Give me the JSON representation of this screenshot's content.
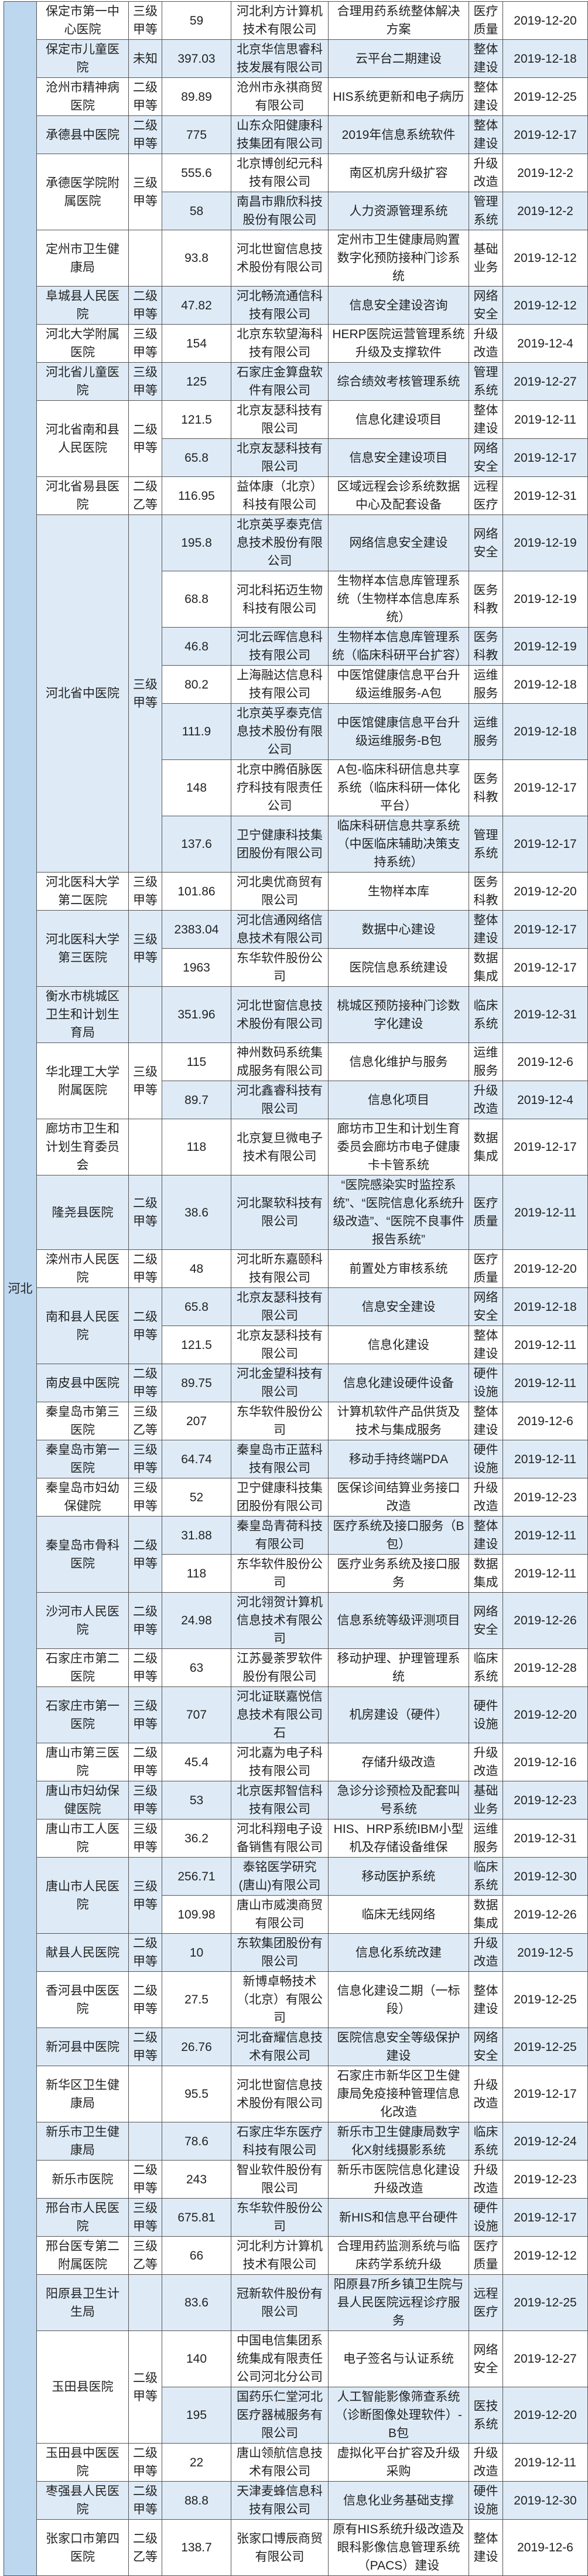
{
  "province": "河北",
  "colors": {
    "province_bg": "#bdd7ee",
    "row_shade": "#deebf7",
    "row_plain": "#ffffff",
    "border": "#555555"
  },
  "hospitals": [
    {
      "name": "保定市第一中心医院",
      "grade": "三级甲等",
      "items": [
        {
          "amount": "59",
          "vendor": "河北利方计算机技术有限公司",
          "project": "合理用药系统整体解决方案",
          "category": "医疗质量",
          "date": "2019-12-20"
        }
      ]
    },
    {
      "name": "保定市儿童医院",
      "grade": "未知",
      "items": [
        {
          "amount": "397.03",
          "vendor": "北京华信思睿科技发展有限公司",
          "project": "云平台二期建设",
          "category": "整体建设",
          "date": "2019-12-18"
        }
      ]
    },
    {
      "name": "沧州市精神病医院",
      "grade": "二级甲等",
      "items": [
        {
          "amount": "89.89",
          "vendor": "沧州市永祺商贸有限公司",
          "project": "HIS系统更新和电子病历",
          "category": "整体建设",
          "date": "2019-12-25"
        }
      ]
    },
    {
      "name": "承德县中医院",
      "grade": "二级甲等",
      "items": [
        {
          "amount": "775",
          "vendor": "山东众阳健康科技集团有限公司",
          "project": "2019年信息系统软件",
          "category": "整体建设",
          "date": "2019-12-17"
        }
      ]
    },
    {
      "name": "承德医学院附属医院",
      "grade": "三级甲等",
      "items": [
        {
          "amount": "555.6",
          "vendor": "北京博创纪元科技有限公司",
          "project": "南区机房升级扩容",
          "category": "升级改造",
          "date": "2019-12-2"
        },
        {
          "amount": "58",
          "vendor": "南昌市鼎欣科技股份有限公司",
          "project": "人力资源管理系统",
          "category": "管理系统",
          "date": "2019-12-2"
        }
      ]
    },
    {
      "name": "定州市卫生健康局",
      "grade": "",
      "items": [
        {
          "amount": "93.8",
          "vendor": "河北世窗信息技术股份有限公司",
          "project": "定州市卫生健康局购置数字化预防接种门诊系统",
          "category": "基础业务",
          "date": "2019-12-12"
        }
      ]
    },
    {
      "name": "阜城县人民医院",
      "grade": "二级甲等",
      "items": [
        {
          "amount": "47.82",
          "vendor": "河北畅流通信科技有限公司",
          "project": "信息安全建设咨询",
          "category": "网络安全",
          "date": "2019-12-12"
        }
      ]
    },
    {
      "name": "河北大学附属医院",
      "grade": "三级甲等",
      "items": [
        {
          "amount": "154",
          "vendor": "北京东软望海科技有限公司",
          "project": "HERP医院运营管理系统升级及支撑软件",
          "category": "升级改造",
          "date": "2019-12-4"
        }
      ]
    },
    {
      "name": "河北省儿童医院",
      "grade": "三级甲等",
      "items": [
        {
          "amount": "125",
          "vendor": "石家庄金算盘软件有限公司",
          "project": "综合绩效考核管理系统",
          "category": "管理系统",
          "date": "2019-12-27"
        }
      ]
    },
    {
      "name": "河北省南和县人民医院",
      "grade": "二级甲等",
      "items": [
        {
          "amount": "121.5",
          "vendor": "北京友瑟科技有限公司",
          "project": "信息化建设项目",
          "category": "整体建设",
          "date": "2019-12-11"
        },
        {
          "amount": "65.8",
          "vendor": "北京友瑟科技有限公司",
          "project": "信息安全建设项目",
          "category": "网络安全",
          "date": "2019-12-17"
        }
      ]
    },
    {
      "name": "河北省易县医院",
      "grade": "二级乙等",
      "items": [
        {
          "amount": "116.95",
          "vendor": "益体康（北京）科技有限公司",
          "project": "区域远程会诊系统数据中心及配套设备",
          "category": "远程医疗",
          "date": "2019-12-31"
        }
      ]
    },
    {
      "name": "河北省中医院",
      "grade": "三级甲等",
      "items": [
        {
          "amount": "195.8",
          "vendor": "北京英孚泰克信息技术股份有限公司",
          "project": "网络信息安全建设",
          "category": "网络安全",
          "date": "2019-12-19"
        },
        {
          "amount": "68.8",
          "vendor": "河北科拓迈生物科技有限公司",
          "project": "生物样本信息库管理系统（生物样本信息库系统）",
          "category": "医务科教",
          "date": "2019-12-19"
        },
        {
          "amount": "46.8",
          "vendor": "河北云晖信息科技有限公司",
          "project": "生物样本信息库管理系统（临床科研平台扩容）",
          "category": "医务科教",
          "date": "2019-12-19"
        },
        {
          "amount": "80.2",
          "vendor": "上海融达信息科技有限公司",
          "project": "中医馆健康信息平台升级运维服务-A包",
          "category": "运维服务",
          "date": "2019-12-18"
        },
        {
          "amount": "111.9",
          "vendor": "北京英孚泰克信息技术股份有限公司",
          "project": "中医馆健康信息平台升级运维服务-B包",
          "category": "运维服务",
          "date": "2019-12-18"
        },
        {
          "amount": "148",
          "vendor": "北京中腾佰脉医疗科技有限责任公司",
          "project": "A包-临床科研信息共享系统（临床科研一体化平台）",
          "category": "医务科教",
          "date": "2019-12-17"
        },
        {
          "amount": "137.6",
          "vendor": "卫宁健康科技集团股份有限公司",
          "project": "临床科研信息共享系统（中医临床辅助决策支持系统）",
          "category": "管理系统",
          "date": "2019-12-17"
        }
      ]
    },
    {
      "name": "河北医科大学第二医院",
      "grade": "三级甲等",
      "items": [
        {
          "amount": "101.86",
          "vendor": "河北奥优商贸有限公司",
          "project": "生物样本库",
          "category": "医务科教",
          "date": "2019-12-20"
        }
      ]
    },
    {
      "name": "河北医科大学第三医院",
      "grade": "三级甲等",
      "items": [
        {
          "amount": "2383.04",
          "vendor": "河北信通网络信息技术有限公司",
          "project": "数据中心建设",
          "category": "整体建设",
          "date": "2019-12-17"
        },
        {
          "amount": "1963",
          "vendor": "东华软件股份公司",
          "project": "医院信息系统建设",
          "category": "数据集成",
          "date": "2019-12-17"
        }
      ]
    },
    {
      "name": "衡水市桃城区卫生和计划生育局",
      "grade": "",
      "items": [
        {
          "amount": "351.96",
          "vendor": "河北世窗信息技术股份有限公司",
          "project": "桃城区预防接种门诊数字化建设",
          "category": "临床系统",
          "date": "2019-12-31"
        }
      ]
    },
    {
      "name": "华北理工大学附属医院",
      "grade": "三级甲等",
      "items": [
        {
          "amount": "115",
          "vendor": "神州数码系统集成服务有限公司",
          "project": "信息化维护与服务",
          "category": "运维服务",
          "date": "2019-12-6"
        },
        {
          "amount": "89.7",
          "vendor": "河北鑫睿科技有限公司",
          "project": "信息化项目",
          "category": "升级改造",
          "date": "2019-12-4"
        }
      ]
    },
    {
      "name": "廊坊市卫生和计划生育委员会",
      "grade": "",
      "items": [
        {
          "amount": "118",
          "vendor": "北京复旦微电子技术有限公司",
          "project": "廊坊市卫生和计划生育委员会廊坊市电子健康卡卡管系统",
          "category": "数据集成",
          "date": "2019-12-17"
        }
      ]
    },
    {
      "name": "隆尧县医院",
      "grade": "二级甲等",
      "items": [
        {
          "amount": "38.6",
          "vendor": "河北聚软科技有限公司",
          "project": "“医院感染实时监控系统”、“医院信息化系统升级改造”、“医院不良事件报告系统”",
          "category": "医疗质量",
          "date": "2019-12-11"
        }
      ]
    },
    {
      "name": "滦州市人民医院",
      "grade": "二级甲等",
      "items": [
        {
          "amount": "48",
          "vendor": "河北昕东嘉颐科技有限公司",
          "project": "前置处方审核系统",
          "category": "医疗质量",
          "date": "2019-12-20"
        }
      ]
    },
    {
      "name": "南和县人民医院",
      "grade": "二级甲等",
      "items": [
        {
          "amount": "65.8",
          "vendor": "北京友瑟科技有限公司",
          "project": "信息安全建设",
          "category": "网络安全",
          "date": "2019-12-18"
        },
        {
          "amount": "121.5",
          "vendor": "北京友瑟科技有限公司",
          "project": "信息化建设",
          "category": "整体建设",
          "date": "2019-12-11"
        }
      ]
    },
    {
      "name": "南皮县中医院",
      "grade": "二级甲等",
      "items": [
        {
          "amount": "89.75",
          "vendor": "河北金望科技有限公司",
          "project": "信息化建设硬件设备",
          "category": "硬件设施",
          "date": "2019-12-11"
        }
      ]
    },
    {
      "name": "秦皇岛市第三医院",
      "grade": "三级乙等",
      "items": [
        {
          "amount": "207",
          "vendor": "东华软件股份公司",
          "project": "计算机软件产品供货及技术与集成服务",
          "category": "整体建设",
          "date": "2019-12-6"
        }
      ]
    },
    {
      "name": "秦皇岛市第一医院",
      "grade": "三级甲等",
      "items": [
        {
          "amount": "64.74",
          "vendor": "秦皇岛市正蓝科技有限公司",
          "project": "移动手持终端PDA",
          "category": "硬件设施",
          "date": "2019-12-11"
        }
      ]
    },
    {
      "name": "秦皇岛市妇幼保健院",
      "grade": "三级甲等",
      "items": [
        {
          "amount": "52",
          "vendor": "卫宁健康科技集团股份有限公司",
          "project": "医保诊间结算业务接口改造",
          "category": "升级改造",
          "date": "2019-12-23"
        }
      ]
    },
    {
      "name": "秦皇岛市骨科医院",
      "grade": "二级甲等",
      "items": [
        {
          "amount": "31.88",
          "vendor": "秦皇岛青荷科技有限公司",
          "project": "医疗系统及接口服务（B包）",
          "category": "整体建设",
          "date": "2019-12-11"
        },
        {
          "amount": "118",
          "vendor": "东华软件股份公司",
          "project": "医疗业务系统及接口服务",
          "category": "数据集成",
          "date": "2019-12-11"
        }
      ]
    },
    {
      "name": "沙河市人民医院",
      "grade": "二级甲等",
      "items": [
        {
          "amount": "24.98",
          "vendor": "河北翎贺计算机信息技术有限公司",
          "project": "信息系统等级评测项目",
          "category": "网络安全",
          "date": "2019-12-26"
        }
      ]
    },
    {
      "name": "石家庄市第二医院",
      "grade": "二级甲等",
      "items": [
        {
          "amount": "63",
          "vendor": "江苏曼荼罗软件股份有限公司",
          "project": "移动护理、护理管理系统",
          "category": "临床系统",
          "date": "2019-12-28"
        }
      ]
    },
    {
      "name": "石家庄市第一医院",
      "grade": "三级甲等",
      "items": [
        {
          "amount": "707",
          "vendor": "河北证联嘉悦信息技术有限公司石",
          "project": "机房建设（硬件）",
          "category": "硬件设施",
          "date": "2019-12-20"
        }
      ]
    },
    {
      "name": "唐山市第三医院",
      "grade": "二级甲等",
      "items": [
        {
          "amount": "45.4",
          "vendor": "河北嘉为电子科技有限公司",
          "project": "存储升级改造",
          "category": "升级改造",
          "date": "2019-12-16"
        }
      ]
    },
    {
      "name": "唐山市妇幼保健医院",
      "grade": "三级甲等",
      "items": [
        {
          "amount": "53",
          "vendor": "北京医邦智信科技有限公司",
          "project": "急诊分诊预检及配套叫号系统",
          "category": "基础业务",
          "date": "2019-12-23"
        }
      ]
    },
    {
      "name": "唐山市工人医院",
      "grade": "三级甲等",
      "items": [
        {
          "amount": "36.2",
          "vendor": "河北科翔电子设备销售有限公司",
          "project": "HIS、HRP系统IBM小型机及存储设备维保",
          "category": "运维服务",
          "date": "2019-12-31"
        }
      ]
    },
    {
      "name": "唐山市人民医院",
      "grade": "三级甲等",
      "items": [
        {
          "amount": "256.71",
          "vendor": "泰铭医学研究(唐山)有限公司",
          "project": "移动医护系统",
          "category": "临床系统",
          "date": "2019-12-30"
        },
        {
          "amount": "109.98",
          "vendor": "唐山市威澳商贸有限公司",
          "project": "临床无线网络",
          "category": "数据集成",
          "date": "2019-12-26"
        }
      ]
    },
    {
      "name": "献县人民医院",
      "grade": "二级甲等",
      "items": [
        {
          "amount": "10",
          "vendor": "东软集团股份有限公司",
          "project": "信息化系统改建",
          "category": "升级改造",
          "date": "2019-12-5"
        }
      ]
    },
    {
      "name": "香河县中医医院",
      "grade": "二级甲等",
      "items": [
        {
          "amount": "27.5",
          "vendor": "新博卓畅技术（北京）有限公司",
          "project": "信息化建设二期（一标段）",
          "category": "整体建设",
          "date": "2019-12-25"
        }
      ]
    },
    {
      "name": "新河县中医院",
      "grade": "二级甲等",
      "items": [
        {
          "amount": "26.76",
          "vendor": "河北奋耀信息技术有限公司",
          "project": "医院信息安全等级保护建设",
          "category": "网络安全",
          "date": "2019-12-25"
        }
      ]
    },
    {
      "name": "新华区卫生健康局",
      "grade": "",
      "items": [
        {
          "amount": "95.5",
          "vendor": "河北世窗信息技术股份有限公司",
          "project": "石家庄市新华区卫生健康局免疫接种管理信息化改造",
          "category": "升级改造",
          "date": "2019-12-17"
        }
      ]
    },
    {
      "name": "新乐市卫生健康局",
      "grade": "",
      "items": [
        {
          "amount": "78.6",
          "vendor": "石家庄华东医疗科技有限公司",
          "project": "新乐市卫生健康局数字化X射线摄影系统",
          "category": "临床系统",
          "date": "2019-12-24"
        }
      ]
    },
    {
      "name": "新乐市医院",
      "grade": "二级甲等",
      "items": [
        {
          "amount": "243",
          "vendor": "智业软件股份有限公司",
          "project": "新乐市医院信息化建设升级改造",
          "category": "升级改造",
          "date": "2019-12-23"
        }
      ]
    },
    {
      "name": "邢台市人民医院",
      "grade": "三级甲等",
      "items": [
        {
          "amount": "675.81",
          "vendor": "东华软件股份公司",
          "project": "新HIS和信息平台硬件",
          "category": "硬件设施",
          "date": "2019-12-17"
        }
      ]
    },
    {
      "name": "邢台医专第二附属医院",
      "grade": "三级乙等",
      "items": [
        {
          "amount": "66",
          "vendor": "河北利方计算机技术有限公司",
          "project": "合理用药监测系统与临床药学系统升级",
          "category": "医疗质量",
          "date": "2019-12-12"
        }
      ]
    },
    {
      "name": "阳原县卫生计生局",
      "grade": "",
      "items": [
        {
          "amount": "83.6",
          "vendor": "冠新软件股份有限公司",
          "project": "阳原县7所乡镇卫生院与县人民医院远程诊疗服务",
          "category": "远程医疗",
          "date": "2019-12-25"
        }
      ]
    },
    {
      "name": "玉田县医院",
      "grade": "二级甲等",
      "items": [
        {
          "amount": "140",
          "vendor": "中国电信集团系统集成有限责任公司河北分公司",
          "project": "电子签名与认证系统",
          "category": "网络安全",
          "date": "2019-12-27"
        },
        {
          "amount": "195",
          "vendor": "国药乐仁堂河北医疗器械服务有限公司",
          "project": "人工智能影像筛查系统（诊断图像处理软件）-B包",
          "category": "医技系统",
          "date": "2019-12-20"
        }
      ]
    },
    {
      "name": "玉田县中医医院",
      "grade": "二级甲等",
      "items": [
        {
          "amount": "22",
          "vendor": "唐山领航信息技术有限公司",
          "project": "虚拟化平台扩容及升级采购",
          "category": "升级改造",
          "date": "2019-12-11"
        }
      ]
    },
    {
      "name": "枣强县人民医院",
      "grade": "二级甲等",
      "items": [
        {
          "amount": "88.8",
          "vendor": "天津麦蜂信息科技有限公司",
          "project": "信息化业务基础支撑",
          "category": "硬件设施",
          "date": "2019-12-30"
        }
      ]
    },
    {
      "name": "张家口市第四医院",
      "grade": "二级乙等",
      "items": [
        {
          "amount": "138.7",
          "vendor": "张家口博辰商贸有限公司",
          "project": "原有HIS系统升级改造及眼科影像信息管理系统（PACS）建设",
          "category": "整体建设",
          "date": "2019-12-6"
        }
      ]
    }
  ]
}
